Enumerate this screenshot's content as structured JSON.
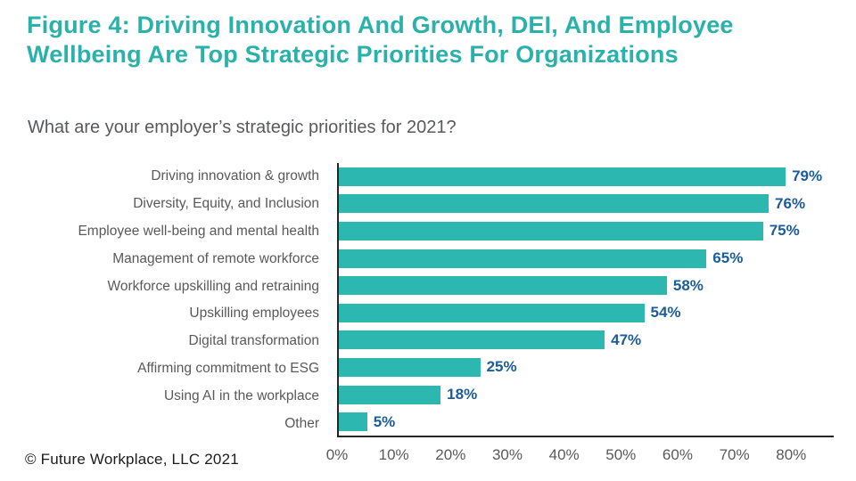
{
  "header": {
    "title": "Figure 4: Driving Innovation And Growth, DEI, And Employee Wellbeing Are Top Strategic Priorities For Organizations",
    "question": "What are your employer’s strategic priorities for 2021?"
  },
  "footer": {
    "copyright": "© Future Workplace, LLC 2021"
  },
  "colors": {
    "title_teal": "#2ab1aa",
    "bar_teal": "#2cb7b1",
    "value_blue": "#1b5c9b",
    "label_gray": "#595959",
    "axis_dark": "#262626"
  },
  "chart_data": {
    "type": "bar",
    "orientation": "horizontal",
    "title": "What are your employer’s strategic priorities for 2021?",
    "categories": [
      "Driving innovation & growth",
      "Diversity, Equity, and Inclusion",
      "Employee well-being and mental health",
      "Management of remote workforce",
      "Workforce upskilling and retraining",
      "Upskilling employees",
      "Digital transformation",
      "Affirming commitment to ESG",
      "Using AI in the workplace",
      "Other"
    ],
    "values": [
      79,
      76,
      75,
      65,
      58,
      54,
      47,
      25,
      18,
      5
    ],
    "value_labels": [
      "79%",
      "76%",
      "75%",
      "65%",
      "58%",
      "54%",
      "47%",
      "25%",
      "18%",
      "5%"
    ],
    "x_ticks": [
      {
        "value": 0,
        "label": "0%"
      },
      {
        "value": 10,
        "label": "10%"
      },
      {
        "value": 20,
        "label": "20%"
      },
      {
        "value": 30,
        "label": "30%"
      },
      {
        "value": 40,
        "label": "40%"
      },
      {
        "value": 50,
        "label": "50%"
      },
      {
        "value": 60,
        "label": "60%"
      },
      {
        "value": 70,
        "label": "70%"
      },
      {
        "value": 80,
        "label": "80%"
      }
    ],
    "xlim": [
      0,
      87.5
    ],
    "xlabel": "",
    "ylabel": "",
    "grid": false,
    "legend": false
  }
}
